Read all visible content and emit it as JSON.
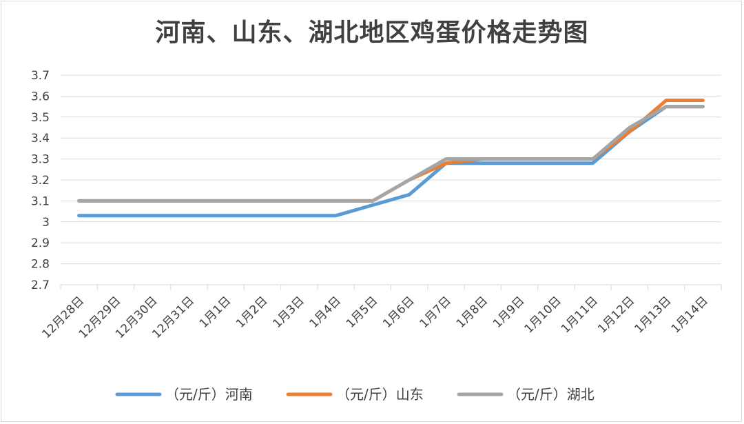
{
  "chart_data": {
    "type": "line",
    "title": "河南、山东、湖北地区鸡蛋价格走势图",
    "categories": [
      "12月28日",
      "12月29日",
      "12月30日",
      "12月31日",
      "1月1日",
      "1月2日",
      "1月3日",
      "1月4日",
      "1月5日",
      "1月6日",
      "1月7日",
      "1月8日",
      "1月9日",
      "1月10日",
      "1月11日",
      "1月12日",
      "1月13日",
      "1月14日"
    ],
    "yticks": [
      "3.7",
      "3.6",
      "3.5",
      "3.4",
      "3.3",
      "3.2",
      "3.1",
      "3",
      "2.9",
      "2.8",
      "2.7"
    ],
    "ylim": [
      2.7,
      3.7
    ],
    "grid": true,
    "legend_position": "bottom",
    "series": [
      {
        "name": "（元/斤）河南",
        "color": "#5b9bd5",
        "values": [
          3.03,
          3.03,
          3.03,
          3.03,
          3.03,
          3.03,
          3.03,
          3.03,
          3.08,
          3.13,
          3.28,
          3.28,
          3.28,
          3.28,
          3.28,
          3.43,
          3.55,
          3.55
        ]
      },
      {
        "name": "（元/斤）山东",
        "color": "#ed7d31",
        "values": [
          3.1,
          3.1,
          3.1,
          3.1,
          3.1,
          3.1,
          3.1,
          3.1,
          3.1,
          3.2,
          3.28,
          3.3,
          3.3,
          3.3,
          3.3,
          3.43,
          3.58,
          3.58
        ]
      },
      {
        "name": "（元/斤）湖北",
        "color": "#a5a5a5",
        "values": [
          3.1,
          3.1,
          3.1,
          3.1,
          3.1,
          3.1,
          3.1,
          3.1,
          3.1,
          3.2,
          3.3,
          3.3,
          3.3,
          3.3,
          3.3,
          3.45,
          3.55,
          3.55
        ]
      }
    ]
  }
}
